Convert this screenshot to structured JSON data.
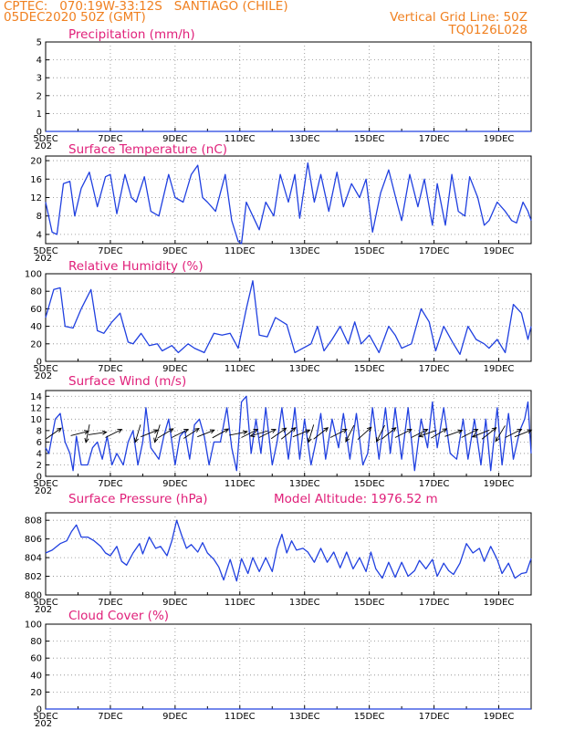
{
  "header": {
    "line1_left": "CPTEC:   070:19W-33:12S   SANTIAGO (CHILE)",
    "line2_left": "05DEC2020 50Z (GMT)",
    "line1_right": "Vertical Grid Line: 50Z",
    "line2_right": "TQ0126L028"
  },
  "colors": {
    "title": "#e0207a",
    "header": "#f08020",
    "line": "#2040e0",
    "grid": "#888888"
  },
  "x_axis": {
    "range_days": [
      5,
      20
    ],
    "tick_days": [
      5,
      7,
      9,
      11,
      13,
      15,
      17,
      19
    ],
    "tick_labels": [
      "5DEC",
      "7DEC",
      "9DEC",
      "11DEC",
      "13DEC",
      "15DEC",
      "17DEC",
      "19DEC"
    ],
    "truncated_year_label": "202"
  },
  "chart_data": [
    {
      "type": "line",
      "title": "Precipitation (mm/h)",
      "ylim": [
        0,
        5
      ],
      "yticks": [
        0,
        1,
        2,
        3,
        4,
        5
      ],
      "x": [
        5,
        20
      ],
      "values": [
        0,
        0
      ]
    },
    {
      "type": "line",
      "title": "Surface Temperature (nC)",
      "ylim": [
        2,
        21
      ],
      "yticks": [
        4,
        8,
        12,
        16,
        20
      ],
      "x": [
        5.0,
        5.2,
        5.35,
        5.55,
        5.75,
        5.9,
        6.1,
        6.35,
        6.6,
        6.85,
        7.0,
        7.2,
        7.45,
        7.65,
        7.8,
        8.05,
        8.25,
        8.5,
        8.8,
        9.0,
        9.25,
        9.5,
        9.7,
        9.85,
        10.0,
        10.25,
        10.55,
        10.75,
        10.95,
        11.05,
        11.2,
        11.4,
        11.6,
        11.8,
        12.05,
        12.25,
        12.5,
        12.7,
        12.85,
        13.1,
        13.3,
        13.5,
        13.75,
        14.0,
        14.2,
        14.45,
        14.7,
        14.9,
        15.1,
        15.35,
        15.6,
        15.85,
        16.0,
        16.25,
        16.5,
        16.7,
        16.95,
        17.1,
        17.35,
        17.55,
        17.75,
        17.95,
        18.1,
        18.35,
        18.55,
        18.7,
        18.95,
        19.2,
        19.4,
        19.55,
        19.75,
        19.9,
        20.0
      ],
      "values": [
        11,
        4.5,
        4,
        15,
        15.5,
        8,
        14,
        17.5,
        10,
        16.5,
        17,
        8.5,
        17,
        12,
        11,
        16.5,
        9,
        8,
        17,
        12,
        11,
        17,
        19,
        12,
        11,
        9,
        17,
        7,
        2.5,
        2,
        11,
        8,
        5,
        11,
        8,
        17,
        11,
        17,
        7.5,
        19.5,
        11,
        17,
        9,
        17.5,
        10,
        15,
        12,
        16,
        4.5,
        13,
        18,
        11,
        7,
        17,
        10,
        16,
        6,
        15,
        6,
        17,
        9,
        8,
        16.5,
        12,
        6,
        7,
        11,
        9,
        7,
        6.5,
        11,
        9,
        7
      ]
    },
    {
      "type": "line",
      "title": "Relative Humidity (%)",
      "ylim": [
        0,
        100
      ],
      "yticks": [
        0,
        20,
        40,
        60,
        80,
        100
      ],
      "x": [
        5.0,
        5.25,
        5.45,
        5.6,
        5.85,
        6.1,
        6.4,
        6.6,
        6.8,
        7.05,
        7.3,
        7.55,
        7.7,
        7.95,
        8.2,
        8.45,
        8.6,
        8.9,
        9.1,
        9.4,
        9.6,
        9.9,
        10.2,
        10.45,
        10.7,
        10.95,
        11.2,
        11.4,
        11.6,
        11.85,
        12.1,
        12.45,
        12.7,
        12.95,
        13.2,
        13.4,
        13.6,
        13.85,
        14.1,
        14.35,
        14.55,
        14.75,
        15.0,
        15.3,
        15.6,
        15.8,
        16.0,
        16.3,
        16.6,
        16.85,
        17.05,
        17.3,
        17.6,
        17.8,
        18.05,
        18.3,
        18.55,
        18.7,
        18.95,
        19.2,
        19.45,
        19.7,
        19.9,
        20.0
      ],
      "values": [
        50,
        82,
        84,
        40,
        38,
        60,
        82,
        35,
        32,
        45,
        55,
        22,
        20,
        32,
        18,
        20,
        12,
        18,
        10,
        20,
        15,
        10,
        32,
        30,
        32,
        15,
        60,
        92,
        30,
        28,
        50,
        42,
        10,
        15,
        20,
        40,
        12,
        25,
        40,
        20,
        45,
        20,
        30,
        10,
        40,
        30,
        15,
        20,
        60,
        45,
        12,
        40,
        20,
        8,
        40,
        25,
        20,
        15,
        25,
        10,
        65,
        55,
        25,
        40
      ]
    },
    {
      "type": "line",
      "title": "Surface Wind (m/s)",
      "ylim": [
        0,
        15
      ],
      "yticks": [
        0,
        2,
        4,
        6,
        8,
        10,
        12,
        14
      ],
      "x": [
        5.0,
        5.1,
        5.3,
        5.45,
        5.6,
        5.75,
        5.85,
        5.95,
        6.1,
        6.3,
        6.45,
        6.6,
        6.75,
        6.9,
        7.05,
        7.2,
        7.4,
        7.55,
        7.7,
        7.85,
        8.0,
        8.1,
        8.25,
        8.5,
        8.65,
        8.8,
        9.0,
        9.15,
        9.3,
        9.45,
        9.6,
        9.75,
        9.9,
        10.05,
        10.2,
        10.4,
        10.6,
        10.75,
        10.9,
        11.05,
        11.2,
        11.35,
        11.5,
        11.65,
        11.8,
        12.0,
        12.15,
        12.3,
        12.5,
        12.7,
        12.85,
        13.0,
        13.2,
        13.35,
        13.5,
        13.65,
        13.85,
        14.05,
        14.2,
        14.4,
        14.6,
        14.8,
        14.95,
        15.1,
        15.3,
        15.5,
        15.65,
        15.8,
        16.0,
        16.2,
        16.4,
        16.6,
        16.8,
        16.95,
        17.1,
        17.3,
        17.5,
        17.7,
        17.9,
        18.05,
        18.25,
        18.45,
        18.6,
        18.75,
        18.95,
        19.1,
        19.3,
        19.45,
        19.65,
        19.8,
        19.9,
        20.0
      ],
      "values": [
        5,
        4,
        10,
        11,
        6,
        4,
        1,
        7,
        2,
        2,
        5,
        6,
        3,
        7,
        2,
        4,
        2,
        6,
        8,
        2,
        6,
        12,
        5,
        3,
        7,
        10,
        2,
        7,
        8,
        3,
        9,
        10,
        7,
        2,
        6,
        6,
        12,
        5,
        1,
        13,
        14,
        4,
        10,
        4,
        12,
        2,
        6,
        12,
        3,
        12,
        3,
        10,
        2,
        6,
        11,
        3,
        10,
        5,
        11,
        3,
        11,
        2,
        4,
        12,
        3,
        12,
        4,
        12,
        3,
        12,
        1,
        10,
        5,
        13,
        5,
        12,
        4,
        3,
        10,
        3,
        10,
        2,
        10,
        1,
        12,
        2,
        11,
        3,
        8,
        10,
        13,
        4
      ]
    },
    {
      "type": "line",
      "title": "Surface Pressure (hPa)",
      "subtitle": "Model Altitude: 1976.52 m",
      "ylim": [
        800,
        808.8
      ],
      "yticks": [
        800,
        802,
        804,
        806,
        808
      ],
      "x": [
        5.0,
        5.2,
        5.45,
        5.65,
        5.8,
        5.95,
        6.1,
        6.3,
        6.5,
        6.7,
        6.85,
        7.0,
        7.2,
        7.35,
        7.5,
        7.7,
        7.9,
        8.0,
        8.2,
        8.4,
        8.55,
        8.75,
        8.9,
        9.05,
        9.2,
        9.35,
        9.5,
        9.7,
        9.85,
        10.0,
        10.2,
        10.35,
        10.5,
        10.7,
        10.9,
        11.05,
        11.25,
        11.4,
        11.6,
        11.8,
        12.0,
        12.15,
        12.3,
        12.45,
        12.6,
        12.75,
        12.95,
        13.1,
        13.3,
        13.5,
        13.7,
        13.9,
        14.1,
        14.3,
        14.5,
        14.7,
        14.9,
        15.05,
        15.2,
        15.4,
        15.6,
        15.8,
        16.0,
        16.2,
        16.4,
        16.55,
        16.75,
        16.95,
        17.1,
        17.3,
        17.45,
        17.6,
        17.8,
        18.0,
        18.2,
        18.4,
        18.55,
        18.75,
        18.95,
        19.1,
        19.3,
        19.5,
        19.7,
        19.85,
        20.0
      ],
      "values": [
        804.5,
        804.8,
        805.5,
        805.8,
        806.8,
        807.5,
        806.2,
        806.2,
        805.8,
        805.2,
        804.5,
        804.2,
        805.2,
        803.6,
        803.2,
        804.5,
        805.5,
        804.4,
        806.2,
        805,
        805.2,
        804.2,
        805.8,
        808,
        806.4,
        805,
        805.4,
        804.6,
        805.6,
        804.5,
        803.8,
        803,
        801.6,
        803.8,
        801.5,
        803.9,
        802.3,
        804,
        802.5,
        804,
        802.5,
        805,
        806.5,
        804.5,
        805.8,
        804.8,
        805,
        804.6,
        803.5,
        805,
        803.5,
        804.6,
        802.9,
        804.6,
        802.8,
        804,
        802.5,
        804.6,
        802.8,
        801.8,
        803.5,
        801.9,
        803.5,
        802,
        802.6,
        803.7,
        802.8,
        803.8,
        802,
        803.4,
        802.6,
        802.2,
        803.4,
        805.5,
        804.5,
        805,
        803.6,
        805.2,
        803.8,
        802.3,
        803.4,
        801.8,
        802.3,
        802.4,
        803.9
      ]
    },
    {
      "type": "line",
      "title": "Cloud Cover (%)",
      "ylim": [
        0,
        100
      ],
      "yticks": [
        0,
        20,
        40,
        60,
        80,
        100
      ],
      "x": [
        5,
        20
      ],
      "values": [
        0,
        0
      ]
    }
  ],
  "wind_arrows": [
    {
      "day": 5.25,
      "u": 1,
      "v": 0.7
    },
    {
      "day": 6.05,
      "u": 1,
      "v": 0.25
    },
    {
      "day": 6.3,
      "u": -0.2,
      "v": -1
    },
    {
      "day": 6.6,
      "u": 1,
      "v": 0.15
    },
    {
      "day": 7.1,
      "u": 1,
      "v": 0.5
    },
    {
      "day": 7.85,
      "u": -0.3,
      "v": -1
    },
    {
      "day": 8.2,
      "u": 1,
      "v": 0.4
    },
    {
      "day": 8.45,
      "u": -0.3,
      "v": -1
    },
    {
      "day": 8.7,
      "u": 1,
      "v": 0.6
    },
    {
      "day": 9.15,
      "u": 1,
      "v": 0.5
    },
    {
      "day": 9.5,
      "u": 1,
      "v": 0.65
    },
    {
      "day": 9.95,
      "u": 1,
      "v": 0.4
    },
    {
      "day": 10.4,
      "u": 1,
      "v": 0.55
    },
    {
      "day": 10.95,
      "u": 1,
      "v": 0.2
    },
    {
      "day": 11.3,
      "u": 1,
      "v": 0.5
    },
    {
      "day": 11.6,
      "u": -1,
      "v": -0.3
    },
    {
      "day": 11.85,
      "u": 1,
      "v": 0.5
    },
    {
      "day": 12.2,
      "u": 1,
      "v": 0.7
    },
    {
      "day": 12.5,
      "u": 1,
      "v": 0.8
    },
    {
      "day": 12.9,
      "u": 1,
      "v": 0.4
    },
    {
      "day": 13.2,
      "u": -0.3,
      "v": -1
    },
    {
      "day": 13.5,
      "u": 1,
      "v": 0.8
    },
    {
      "day": 14.05,
      "u": 1,
      "v": 0.5
    },
    {
      "day": 14.4,
      "u": -0.5,
      "v": -1
    },
    {
      "day": 14.85,
      "u": 1,
      "v": 0.9
    },
    {
      "day": 15.35,
      "u": -0.5,
      "v": -1
    },
    {
      "day": 15.6,
      "u": 1,
      "v": 0.8
    },
    {
      "day": 16.05,
      "u": 1,
      "v": 0.5
    },
    {
      "day": 16.55,
      "u": 1,
      "v": 0.5
    },
    {
      "day": 16.8,
      "u": -1,
      "v": -0.35
    },
    {
      "day": 17.15,
      "u": 1,
      "v": 0.6
    },
    {
      "day": 17.6,
      "u": 1,
      "v": 0.35
    },
    {
      "day": 18.1,
      "u": 1,
      "v": 0.5
    },
    {
      "day": 18.45,
      "u": -1,
      "v": -0.4
    },
    {
      "day": 18.7,
      "u": 1,
      "v": 0.8
    },
    {
      "day": 19.05,
      "u": -0.6,
      "v": -1
    },
    {
      "day": 19.45,
      "u": 1,
      "v": 0.5
    },
    {
      "day": 19.75,
      "u": 1,
      "v": 0.4
    }
  ]
}
